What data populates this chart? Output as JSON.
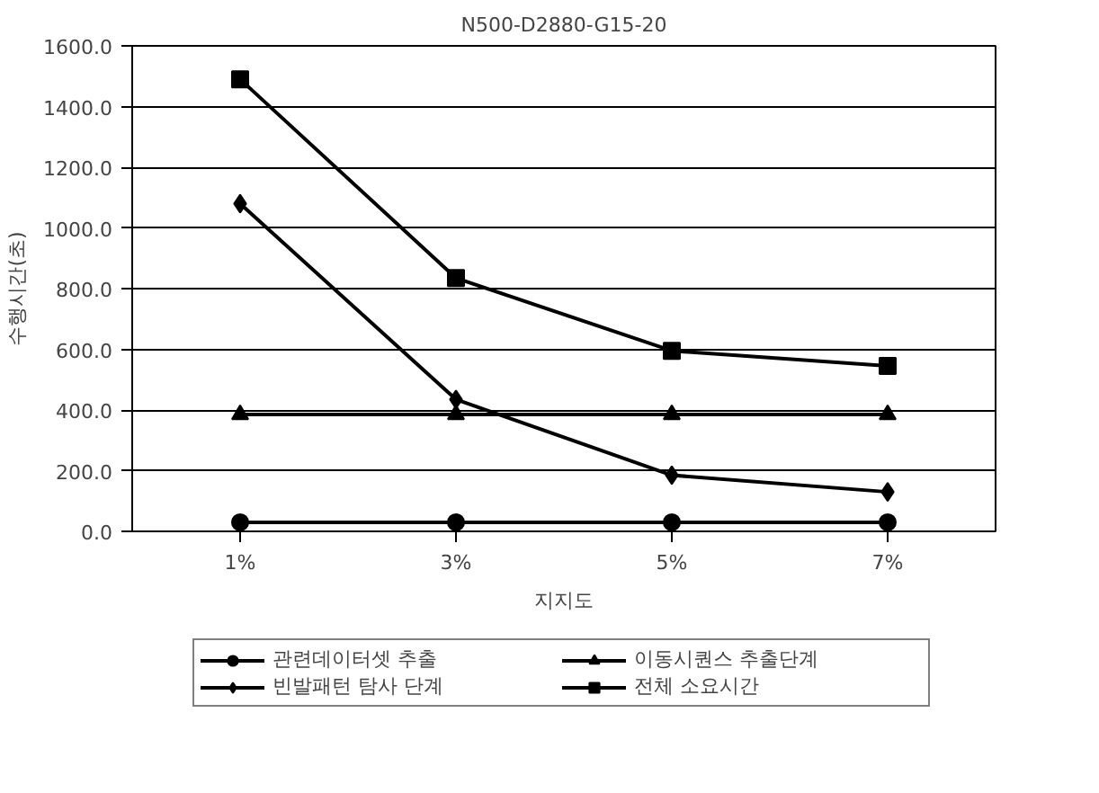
{
  "chart_data": {
    "type": "line",
    "title": "N500-D2880-G15-20",
    "xlabel": "지지도",
    "ylabel": "수행시간(초)",
    "categories": [
      "1%",
      "3%",
      "5%",
      "7%"
    ],
    "series": [
      {
        "name": "관련데이터셋 추출",
        "color": "#000000",
        "marker": "circle",
        "values": [
          30,
          30,
          30,
          30
        ]
      },
      {
        "name": "이동시퀀스 추출단계",
        "color": "#000000",
        "marker": "triangle",
        "values": [
          385,
          385,
          385,
          385
        ]
      },
      {
        "name": "빈발패턴 탐사 단계",
        "color": "#000000",
        "marker": "diamond",
        "values": [
          1080,
          435,
          185,
          130
        ]
      },
      {
        "name": "전체 소요시간",
        "color": "#000000",
        "marker": "square",
        "values": [
          1490,
          835,
          595,
          545
        ]
      }
    ],
    "ylim": [
      0,
      1600
    ],
    "yticks": [
      {
        "value": 0,
        "label": "0.0"
      },
      {
        "value": 200,
        "label": "200.0"
      },
      {
        "value": 400,
        "label": "400.0"
      },
      {
        "value": 600,
        "label": "600.0"
      },
      {
        "value": 800,
        "label": "800.0"
      },
      {
        "value": 1000,
        "label": "1000.0"
      },
      {
        "value": 1200,
        "label": "1200.0"
      },
      {
        "value": 1400,
        "label": "1400.0"
      },
      {
        "value": 1600,
        "label": "1600.0"
      }
    ],
    "grid": "y",
    "legend": "bottom",
    "line_style": "solid"
  }
}
